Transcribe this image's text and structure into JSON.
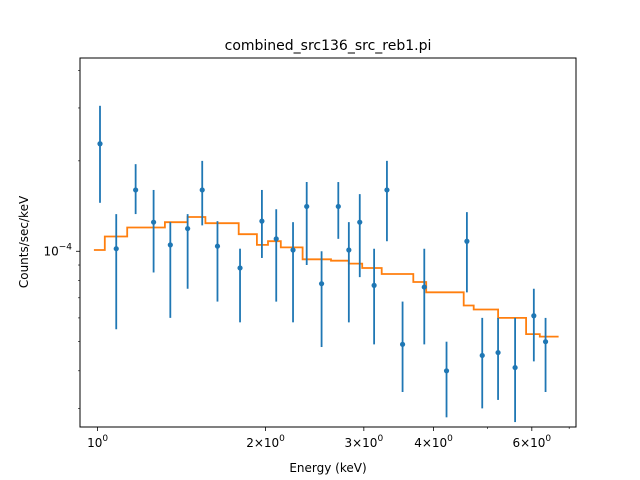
{
  "chart_data": {
    "type": "scatter",
    "title": "combined_src136_src_reb1.pi",
    "xlabel": "Energy (keV)",
    "ylabel": "Counts/sec/keV",
    "xscale": "log",
    "yscale": "log",
    "xlim": [
      0.93,
      7.2
    ],
    "ylim": [
      2.6e-05,
      0.00044
    ],
    "x_ticks": [
      {
        "value": 1,
        "label": "10^0"
      },
      {
        "value": 2,
        "label": "2×10^0"
      },
      {
        "value": 3,
        "label": "3×10^0"
      },
      {
        "value": 4,
        "label": "4×10^0"
      },
      {
        "value": 6,
        "label": "6×10^0"
      }
    ],
    "y_ticks": [
      {
        "value": 0.0001,
        "label": "10^−4"
      }
    ],
    "data_series": {
      "color": "#1f77b4",
      "points": [
        {
          "x": 1.01,
          "y": 0.000228,
          "ylo": 0.000145,
          "yhi": 0.000305
        },
        {
          "x": 1.08,
          "y": 0.000102,
          "ylo": 5.5e-05,
          "yhi": 0.000133
        },
        {
          "x": 1.17,
          "y": 0.00016,
          "ylo": 0.000133,
          "yhi": 0.000195
        },
        {
          "x": 1.26,
          "y": 0.000125,
          "ylo": 8.5e-05,
          "yhi": 0.00016
        },
        {
          "x": 1.35,
          "y": 0.000105,
          "ylo": 6e-05,
          "yhi": 0.000125
        },
        {
          "x": 1.45,
          "y": 0.000119,
          "ylo": 7.5e-05,
          "yhi": 0.000133
        },
        {
          "x": 1.54,
          "y": 0.00016,
          "ylo": 0.000122,
          "yhi": 0.0002
        },
        {
          "x": 1.64,
          "y": 0.000104,
          "ylo": 6.8e-05,
          "yhi": 0.000126
        },
        {
          "x": 1.8,
          "y": 8.8e-05,
          "ylo": 5.8e-05,
          "yhi": 0.000102
        },
        {
          "x": 1.97,
          "y": 0.000126,
          "ylo": 9.5e-05,
          "yhi": 0.00016
        },
        {
          "x": 2.09,
          "y": 0.00011,
          "ylo": 6.8e-05,
          "yhi": 0.000138
        },
        {
          "x": 2.24,
          "y": 0.000101,
          "ylo": 5.8e-05,
          "yhi": 0.000125
        },
        {
          "x": 2.37,
          "y": 0.000141,
          "ylo": 9e-05,
          "yhi": 0.00017
        },
        {
          "x": 2.52,
          "y": 7.8e-05,
          "ylo": 4.8e-05,
          "yhi": 0.0001
        },
        {
          "x": 2.7,
          "y": 0.000141,
          "ylo": 0.00011,
          "yhi": 0.00017
        },
        {
          "x": 2.82,
          "y": 0.000101,
          "ylo": 5.8e-05,
          "yhi": 0.000125
        },
        {
          "x": 2.95,
          "y": 0.000125,
          "ylo": 8.2e-05,
          "yhi": 0.000155
        },
        {
          "x": 3.13,
          "y": 7.7e-05,
          "ylo": 4.9e-05,
          "yhi": 0.000102
        },
        {
          "x": 3.3,
          "y": 0.00016,
          "ylo": 0.000108,
          "yhi": 0.0002
        },
        {
          "x": 3.52,
          "y": 4.9e-05,
          "ylo": 3.4e-05,
          "yhi": 6.8e-05
        },
        {
          "x": 3.85,
          "y": 7.6e-05,
          "ylo": 4.9e-05,
          "yhi": 0.000102
        },
        {
          "x": 4.22,
          "y": 4e-05,
          "ylo": 2.8e-05,
          "yhi": 5e-05
        },
        {
          "x": 4.59,
          "y": 0.000108,
          "ylo": 7.3e-05,
          "yhi": 0.000135
        },
        {
          "x": 4.89,
          "y": 4.5e-05,
          "ylo": 3e-05,
          "yhi": 6e-05
        },
        {
          "x": 5.22,
          "y": 4.6e-05,
          "ylo": 3.2e-05,
          "yhi": 6e-05
        },
        {
          "x": 5.6,
          "y": 4.1e-05,
          "ylo": 2.7e-05,
          "yhi": 6e-05
        },
        {
          "x": 6.05,
          "y": 6.1e-05,
          "ylo": 4.3e-05,
          "yhi": 7.5e-05
        },
        {
          "x": 6.35,
          "y": 5e-05,
          "ylo": 3.4e-05,
          "yhi": 6e-05
        }
      ]
    },
    "model_series": {
      "color": "#ff7f0e",
      "steps": [
        {
          "x0": 0.985,
          "x1": 1.03,
          "y": 0.000101
        },
        {
          "x0": 1.03,
          "x1": 1.13,
          "y": 0.000112
        },
        {
          "x0": 1.13,
          "x1": 1.32,
          "y": 0.00012
        },
        {
          "x0": 1.32,
          "x1": 1.45,
          "y": 0.000125
        },
        {
          "x0": 1.45,
          "x1": 1.56,
          "y": 0.00013
        },
        {
          "x0": 1.56,
          "x1": 1.79,
          "y": 0.000124
        },
        {
          "x0": 1.79,
          "x1": 1.93,
          "y": 0.000114
        },
        {
          "x0": 1.93,
          "x1": 2.02,
          "y": 0.000105
        },
        {
          "x0": 2.02,
          "x1": 2.13,
          "y": 0.000108
        },
        {
          "x0": 2.13,
          "x1": 2.33,
          "y": 0.000103
        },
        {
          "x0": 2.33,
          "x1": 2.62,
          "y": 9.4e-05
        },
        {
          "x0": 2.62,
          "x1": 2.82,
          "y": 9.3e-05
        },
        {
          "x0": 2.82,
          "x1": 2.98,
          "y": 9.1e-05
        },
        {
          "x0": 2.98,
          "x1": 3.23,
          "y": 8.8e-05
        },
        {
          "x0": 3.23,
          "x1": 3.68,
          "y": 8.4e-05
        },
        {
          "x0": 3.68,
          "x1": 3.88,
          "y": 7.9e-05
        },
        {
          "x0": 3.88,
          "x1": 4.53,
          "y": 7.3e-05
        },
        {
          "x0": 4.53,
          "x1": 4.72,
          "y": 6.6e-05
        },
        {
          "x0": 4.72,
          "x1": 5.22,
          "y": 6.4e-05
        },
        {
          "x0": 5.22,
          "x1": 5.86,
          "y": 6e-05
        },
        {
          "x0": 5.86,
          "x1": 6.2,
          "y": 5.3e-05
        },
        {
          "x0": 6.2,
          "x1": 6.7,
          "y": 5.2e-05
        }
      ]
    }
  }
}
